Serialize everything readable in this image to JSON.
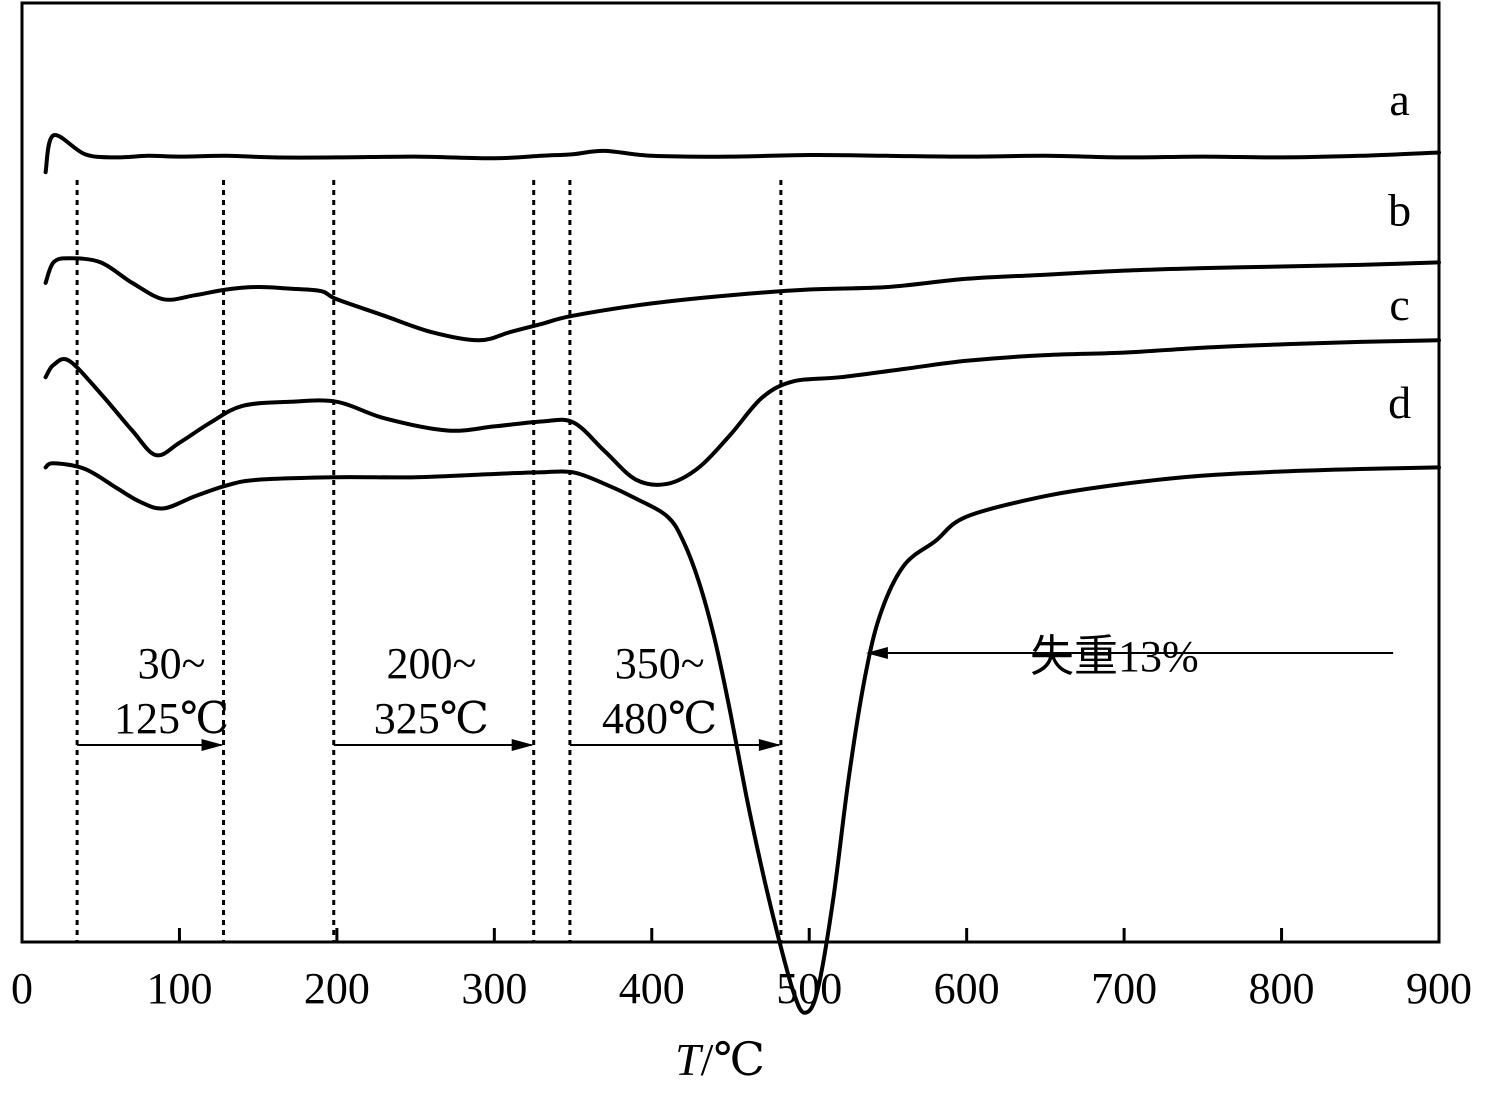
{
  "chart_data": {
    "type": "line",
    "xlabel_var": "T",
    "xlabel_unit": "/℃",
    "xlim": [
      0,
      900
    ],
    "x_ticks": [
      0,
      100,
      200,
      300,
      400,
      500,
      600,
      700,
      800,
      900
    ],
    "x_tick_labels": [
      "0",
      "100",
      "200",
      "300",
      "400",
      "500",
      "600",
      "700",
      "800",
      "900"
    ],
    "y_ticks_visible": false,
    "grid": false,
    "series": [
      {
        "name": "a",
        "x": [
          15,
          20,
          40,
          60,
          80,
          100,
          130,
          160,
          200,
          250,
          300,
          330,
          350,
          370,
          400,
          450,
          500,
          550,
          600,
          650,
          700,
          750,
          800,
          850,
          900
        ],
        "y": [
          0.94,
          0.985,
          0.962,
          0.958,
          0.96,
          0.959,
          0.96,
          0.958,
          0.958,
          0.959,
          0.957,
          0.96,
          0.962,
          0.966,
          0.96,
          0.959,
          0.961,
          0.96,
          0.959,
          0.96,
          0.958,
          0.959,
          0.958,
          0.96,
          0.964
        ]
      },
      {
        "name": "b",
        "x": [
          15,
          20,
          30,
          50,
          70,
          90,
          110,
          130,
          150,
          170,
          190,
          200,
          230,
          260,
          290,
          310,
          330,
          350,
          400,
          450,
          500,
          550,
          600,
          650,
          700,
          750,
          800,
          850,
          900
        ],
        "y": [
          0.805,
          0.83,
          0.835,
          0.83,
          0.805,
          0.785,
          0.79,
          0.797,
          0.8,
          0.798,
          0.795,
          0.785,
          0.765,
          0.745,
          0.735,
          0.745,
          0.755,
          0.765,
          0.78,
          0.79,
          0.797,
          0.8,
          0.81,
          0.815,
          0.82,
          0.823,
          0.825,
          0.827,
          0.83
        ]
      },
      {
        "name": "c",
        "x": [
          15,
          20,
          30,
          50,
          70,
          85,
          100,
          120,
          140,
          170,
          200,
          230,
          270,
          300,
          330,
          350,
          370,
          390,
          410,
          430,
          450,
          470,
          490,
          520,
          560,
          600,
          650,
          700,
          750,
          800,
          850,
          900
        ],
        "y": [
          0.69,
          0.705,
          0.71,
          0.67,
          0.625,
          0.595,
          0.61,
          0.635,
          0.655,
          0.66,
          0.66,
          0.64,
          0.625,
          0.63,
          0.636,
          0.635,
          0.6,
          0.565,
          0.56,
          0.58,
          0.62,
          0.665,
          0.685,
          0.69,
          0.7,
          0.71,
          0.717,
          0.72,
          0.726,
          0.73,
          0.733,
          0.735
        ]
      },
      {
        "name": "d",
        "x": [
          15,
          20,
          40,
          60,
          75,
          90,
          110,
          130,
          150,
          200,
          250,
          300,
          330,
          350,
          370,
          390,
          410,
          420,
          430,
          440,
          450,
          460,
          470,
          480,
          490,
          497,
          505,
          515,
          525,
          535,
          545,
          560,
          580,
          600,
          650,
          700,
          750,
          800,
          850,
          900
        ],
        "y": [
          0.58,
          0.585,
          0.578,
          0.555,
          0.538,
          0.53,
          0.545,
          0.558,
          0.565,
          0.568,
          0.568,
          0.572,
          0.574,
          0.574,
          0.56,
          0.542,
          0.52,
          0.49,
          0.44,
          0.37,
          0.28,
          0.18,
          0.09,
          0.01,
          -0.06,
          -0.085,
          -0.06,
          0.05,
          0.2,
          0.32,
          0.4,
          0.46,
          0.49,
          0.52,
          0.545,
          0.56,
          0.57,
          0.575,
          0.578,
          0.58
        ]
      }
    ],
    "series_labels": [
      {
        "text": "a",
        "x": 875,
        "y": 1.01
      },
      {
        "text": "b",
        "x": 875,
        "y": 0.875
      },
      {
        "text": "c",
        "x": 875,
        "y": 0.76
      },
      {
        "text": "d",
        "x": 875,
        "y": 0.64
      }
    ],
    "dotted_lines": [
      35,
      128,
      198,
      325,
      348,
      482
    ],
    "arrows": [
      {
        "from": 35,
        "to": 128,
        "label_line1": "30~",
        "label_line2": "125℃",
        "label_x": 95
      },
      {
        "from": 198,
        "to": 325,
        "label_line1": "200~",
        "label_line2": "325℃",
        "label_x": 260
      },
      {
        "from": 348,
        "to": 482,
        "label_line1": "350~",
        "label_line2": "480℃",
        "label_x": 405
      }
    ],
    "annotations": [
      {
        "text": "失重13%",
        "arrow_from_x": 620,
        "arrow_to_x": 536,
        "y": 0.25
      }
    ]
  }
}
